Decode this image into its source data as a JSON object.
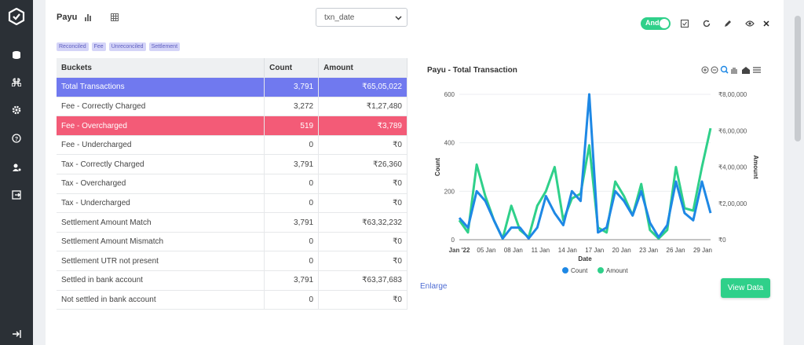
{
  "header": {
    "title": "Payu",
    "select_value": "txn_date",
    "toggle_label": "And"
  },
  "tags": [
    "Reconciled",
    "Fee",
    "Unreconciled",
    "Settlement"
  ],
  "table": {
    "headers": [
      "Buckets",
      "Count",
      "Amount"
    ],
    "rows": [
      {
        "bucket": "Total Transactions",
        "count": "3,791",
        "amount": "₹65,05,022",
        "highlight": "blue"
      },
      {
        "bucket": "Fee - Correctly Charged",
        "count": "3,272",
        "amount": "₹1,27,480",
        "highlight": ""
      },
      {
        "bucket": "Fee - Overcharged",
        "count": "519",
        "amount": "₹3,789",
        "highlight": "red"
      },
      {
        "bucket": "Fee - Undercharged",
        "count": "0",
        "amount": "₹0",
        "highlight": ""
      },
      {
        "bucket": "Tax - Correctly Charged",
        "count": "3,791",
        "amount": "₹26,360",
        "highlight": ""
      },
      {
        "bucket": "Tax - Overcharged",
        "count": "0",
        "amount": "₹0",
        "highlight": ""
      },
      {
        "bucket": "Tax - Undercharged",
        "count": "0",
        "amount": "₹0",
        "highlight": ""
      },
      {
        "bucket": "Settlement Amount Match",
        "count": "3,791",
        "amount": "₹63,32,232",
        "highlight": ""
      },
      {
        "bucket": "Settlement Amount Mismatch",
        "count": "0",
        "amount": "₹0",
        "highlight": ""
      },
      {
        "bucket": "Settlement UTR not present",
        "count": "0",
        "amount": "₹0",
        "highlight": ""
      },
      {
        "bucket": "Settled in bank account",
        "count": "3,791",
        "amount": "₹63,37,683",
        "highlight": ""
      },
      {
        "bucket": "Not settled in bank account",
        "count": "0",
        "amount": "₹0",
        "highlight": ""
      }
    ]
  },
  "chart": {
    "title": "Payu - Total Transaction",
    "enlarge_label": "Enlarge",
    "view_button": "View Data"
  },
  "colors": {
    "accent_green": "#2fd08a",
    "row_blue": "#7079ef",
    "row_red": "#f35b77",
    "count_line": "#1e88e5",
    "amount_line": "#2fd08a"
  },
  "chart_data": {
    "type": "line",
    "title": "Payu - Total Transaction",
    "xlabel": "Date",
    "ylabel": "Count",
    "y2label": "Amount",
    "x_ticks": [
      "Jan '22",
      "05 Jan",
      "08 Jan",
      "11 Jan",
      "14 Jan",
      "17 Jan",
      "20 Jan",
      "23 Jan",
      "26 Jan",
      "29 Jan"
    ],
    "y_ticks": [
      "0",
      "200",
      "400",
      "600"
    ],
    "y2_ticks": [
      "₹0",
      "₹2,00,000",
      "₹4,00,000",
      "₹6,00,000",
      "₹8,00,000"
    ],
    "ylim": [
      0,
      600
    ],
    "y2lim": [
      0,
      800000
    ],
    "series": [
      {
        "name": "Count",
        "axis": "left",
        "values": [
          90,
          50,
          200,
          160,
          80,
          5,
          50,
          50,
          5,
          50,
          180,
          110,
          60,
          200,
          160,
          600,
          30,
          50,
          200,
          160,
          100,
          200,
          70,
          10,
          60,
          240,
          110,
          80,
          240,
          110
        ]
      },
      {
        "name": "Amount",
        "axis": "left",
        "values": [
          80,
          30,
          310,
          180,
          80,
          5,
          140,
          40,
          10,
          140,
          200,
          300,
          80,
          170,
          190,
          390,
          50,
          30,
          240,
          180,
          100,
          230,
          40,
          5,
          40,
          300,
          130,
          120,
          300,
          460
        ]
      }
    ],
    "legend": [
      "Count",
      "Amount"
    ],
    "legend_position": "bottom"
  }
}
